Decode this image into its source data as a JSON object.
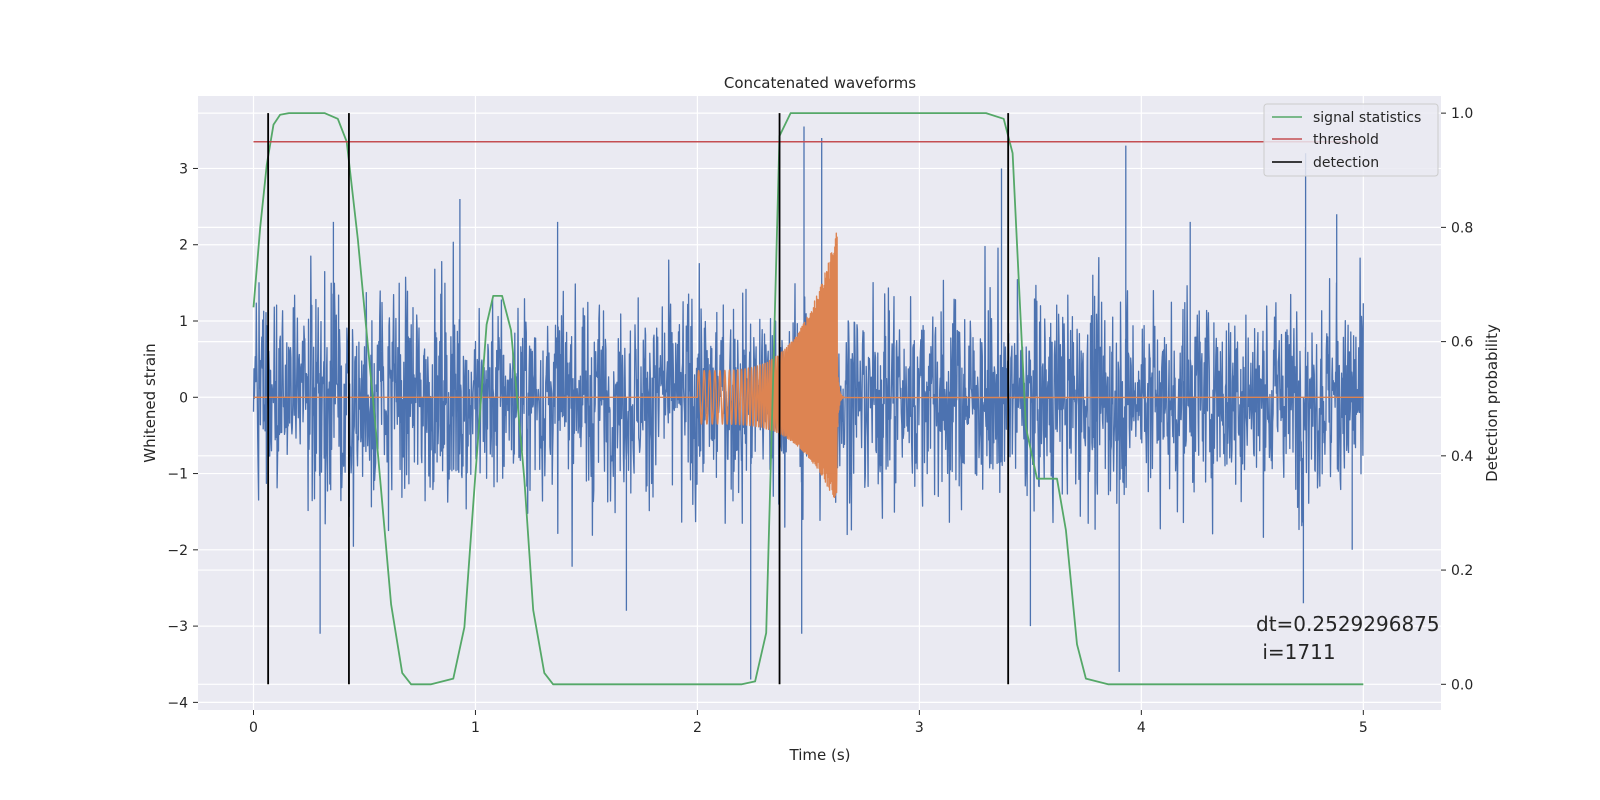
{
  "chart_data": {
    "type": "line",
    "title": "Concatenated waveforms",
    "xlabel": "Time (s)",
    "ylabel": "Whitened strain",
    "y2label": "Detection probability",
    "xlim": [
      -0.25,
      5.35
    ],
    "ylim": [
      -4.1,
      3.95
    ],
    "y2lim": [
      -0.045,
      1.03
    ],
    "x_ticks": [
      0,
      1,
      2,
      3,
      4,
      5
    ],
    "y_ticks": [
      -4,
      -3,
      -2,
      -1,
      0,
      1,
      2,
      3
    ],
    "y2_ticks": [
      0.0,
      0.2,
      0.4,
      0.6,
      0.8,
      1.0
    ],
    "y2_tick_labels": [
      "0.0",
      "0.2",
      "0.4",
      "0.6",
      "0.8",
      "1.0"
    ],
    "grid": true,
    "legend_position": "top-right",
    "colors": {
      "strain": "#4c72b0",
      "template": "#dd8452",
      "signal_statistics": "#55a868",
      "threshold": "#c44e52",
      "detection": "#000000",
      "background": "#eaeaf2"
    },
    "series": [
      {
        "name": "signal statistics",
        "axis": "right",
        "x": [
          0.0,
          0.03,
          0.06,
          0.09,
          0.12,
          0.16,
          0.22,
          0.32,
          0.38,
          0.42,
          0.47,
          0.55,
          0.62,
          0.67,
          0.71,
          0.8,
          0.9,
          0.95,
          1.0,
          1.05,
          1.08,
          1.12,
          1.16,
          1.22,
          1.26,
          1.31,
          1.35,
          1.5,
          2.0,
          2.2,
          2.26,
          2.31,
          2.34,
          2.37,
          2.42,
          2.6,
          3.3,
          3.38,
          3.42,
          3.48,
          3.53,
          3.62,
          3.66,
          3.71,
          3.75,
          3.85,
          4.0,
          5.0
        ],
        "y": [
          0.66,
          0.8,
          0.91,
          0.98,
          0.997,
          1.0,
          1.0,
          1.0,
          0.99,
          0.95,
          0.78,
          0.45,
          0.14,
          0.02,
          0.0,
          0.0,
          0.01,
          0.1,
          0.37,
          0.63,
          0.68,
          0.68,
          0.62,
          0.36,
          0.13,
          0.02,
          0.0,
          0.0,
          0.0,
          0.0,
          0.005,
          0.09,
          0.52,
          0.96,
          1.0,
          1.0,
          1.0,
          0.99,
          0.93,
          0.45,
          0.36,
          0.36,
          0.27,
          0.07,
          0.01,
          0.0,
          0.0,
          0.0
        ]
      },
      {
        "name": "threshold",
        "axis": "right",
        "x": [
          0,
          5
        ],
        "y": [
          0.95,
          0.95
        ]
      },
      {
        "name": "detection",
        "axis": "right",
        "type": "vlines",
        "x": [
          0.066,
          0.43,
          2.37,
          3.4
        ],
        "ymin": 0.0,
        "ymax": 1.0
      },
      {
        "axis": "left",
        "description_of_role": "noisy whitened strain",
        "x_range": [
          0,
          5
        ],
        "amplitude_envelope": 1.0,
        "peaks_high": [
          [
            0.36,
            2.3
          ],
          [
            0.93,
            2.6
          ],
          [
            1.37,
            2.3
          ],
          [
            2.48,
            3.55
          ],
          [
            2.56,
            3.4
          ],
          [
            3.37,
            3.0
          ],
          [
            3.93,
            3.3
          ],
          [
            4.22,
            2.3
          ],
          [
            4.74,
            3.2
          ],
          [
            4.88,
            2.4
          ]
        ],
        "peaks_low": [
          [
            0.3,
            -3.1
          ],
          [
            1.68,
            -2.8
          ],
          [
            2.24,
            -3.7
          ],
          [
            2.47,
            -3.1
          ],
          [
            3.5,
            -3.0
          ],
          [
            3.9,
            -3.6
          ],
          [
            4.73,
            -2.7
          ],
          [
            4.95,
            -2.0
          ]
        ]
      },
      {
        "axis": "left",
        "description_of_role": "injected chirp template",
        "x_start": 2.0,
        "x_merger": 2.63,
        "x_end": 5.0,
        "start_amplitude": 0.35,
        "peak_amplitude": 2.2,
        "trough_amplitude": -1.45
      }
    ]
  },
  "legend": {
    "items": [
      {
        "label": "signal statistics",
        "color": "#55a868"
      },
      {
        "label": "threshold",
        "color": "#c44e52"
      },
      {
        "label": "detection",
        "color": "#000000"
      }
    ]
  },
  "annotation": {
    "line1": "dt=0.2529296875",
    "line2": " i=1711"
  }
}
